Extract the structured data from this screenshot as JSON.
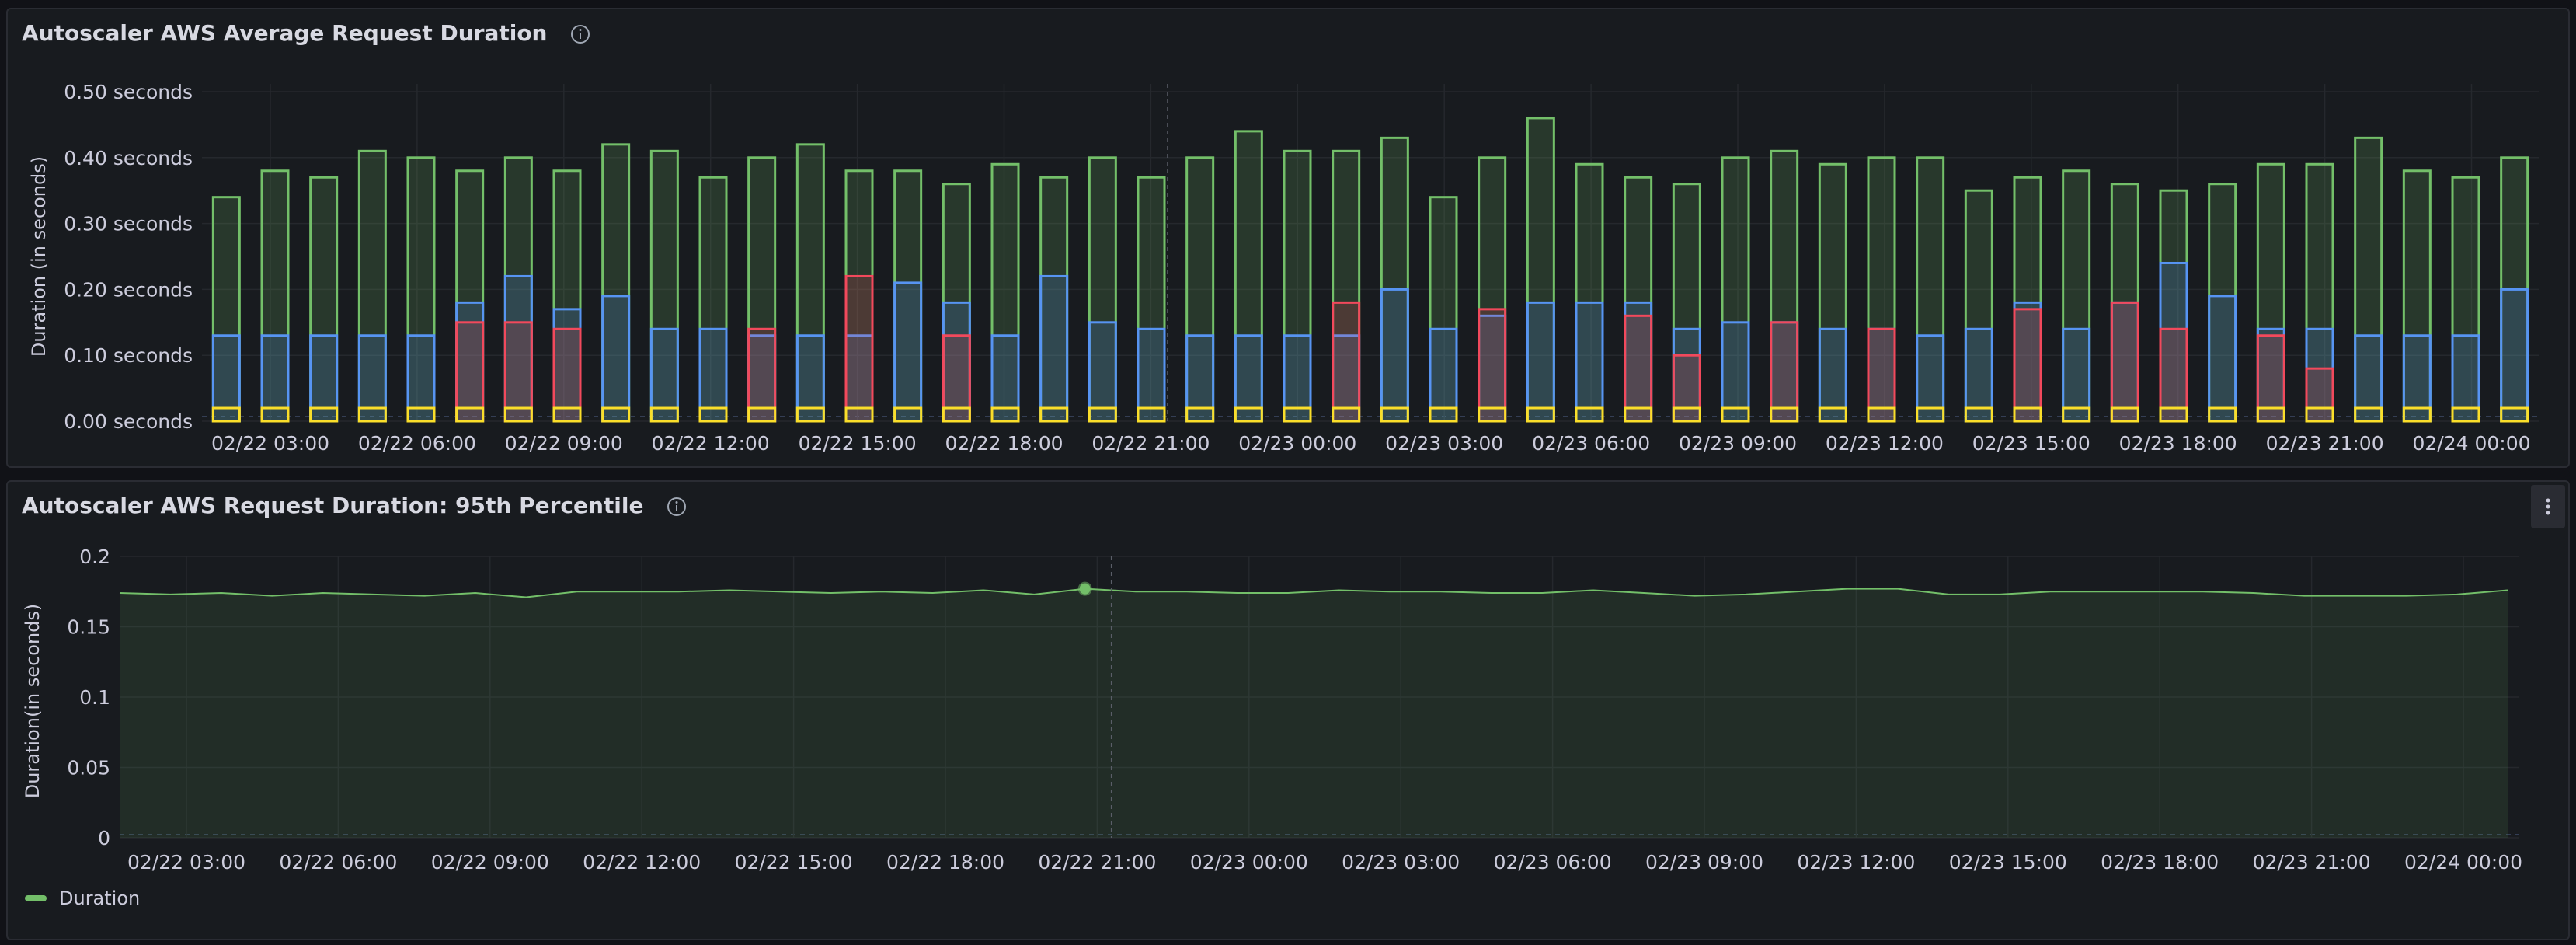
{
  "panels": [
    {
      "title": "Autoscaler AWS Average Request Duration"
    },
    {
      "title": "Autoscaler AWS Request Duration: 95th Percentile",
      "legend": [
        "Duration"
      ]
    }
  ],
  "colors": {
    "green": "#73bf69",
    "blue": "#5794f2",
    "red": "#f2495c",
    "yellow": "#fade2a",
    "grid": "#25282d",
    "text": "#ccccdc"
  },
  "icons": [
    "info-icon",
    "menu-kebab-icon"
  ],
  "chart_data": [
    {
      "type": "bar",
      "title": "Autoscaler AWS Average Request Duration",
      "ylabel": "Duration (in seconds)",
      "ylim": [
        0,
        0.5
      ],
      "yticks": [
        "0.00 seconds",
        "0.10 seconds",
        "0.20 seconds",
        "0.30 seconds",
        "0.40 seconds",
        "0.50 seconds"
      ],
      "xticks": [
        "02/22 03:00",
        "02/22 06:00",
        "02/22 09:00",
        "02/22 12:00",
        "02/22 15:00",
        "02/22 18:00",
        "02/22 21:00",
        "02/23 00:00",
        "02/23 03:00",
        "02/23 06:00",
        "02/23 09:00",
        "02/23 12:00",
        "02/23 15:00",
        "02/23 18:00",
        "02/23 21:00",
        "02/24 00:00"
      ],
      "grid": true,
      "series": [
        {
          "color": "green",
          "values": [
            0.34,
            0.38,
            0.37,
            0.41,
            0.4,
            0.38,
            0.4,
            0.38,
            0.42,
            0.41,
            0.37,
            0.4,
            0.42,
            0.38,
            0.38,
            0.36,
            0.39,
            0.37,
            0.4,
            0.37,
            0.4,
            0.44,
            0.41,
            0.41,
            0.43,
            0.34,
            0.4,
            0.46,
            0.39,
            0.37,
            0.36,
            0.4,
            0.41,
            0.39,
            0.4,
            0.4,
            0.35,
            0.37,
            0.38,
            0.36,
            0.35,
            0.36,
            0.39,
            0.39,
            0.43,
            0.38,
            0.37,
            0.4
          ]
        },
        {
          "color": "blue",
          "values": [
            0.13,
            0.13,
            0.13,
            0.13,
            0.13,
            0.18,
            0.22,
            0.17,
            0.19,
            0.14,
            0.14,
            0.13,
            0.13,
            0.13,
            0.21,
            0.18,
            0.13,
            0.22,
            0.15,
            0.14,
            0.13,
            0.13,
            0.13,
            0.13,
            0.2,
            0.14,
            0.16,
            0.18,
            0.18,
            0.18,
            0.14,
            0.15,
            0.15,
            0.14,
            0.14,
            0.13,
            0.14,
            0.18,
            0.14,
            0.18,
            0.24,
            0.19,
            0.14,
            0.14,
            0.13,
            0.13,
            0.13,
            0.2
          ]
        },
        {
          "color": "red",
          "values": [
            0,
            0,
            0,
            0,
            0,
            0.15,
            0.15,
            0.14,
            0,
            0,
            0,
            0.14,
            0,
            0.22,
            0,
            0.13,
            0,
            0,
            0,
            0,
            0,
            0,
            0,
            0.18,
            0,
            0,
            0.17,
            0,
            0,
            0.16,
            0.1,
            0,
            0.15,
            0,
            0.14,
            0,
            0,
            0.17,
            0,
            0.18,
            0.14,
            0,
            0.13,
            0.08,
            0,
            0,
            0,
            0
          ]
        },
        {
          "color": "yellow",
          "values": [
            0.02,
            0.02,
            0.02,
            0.02,
            0.02,
            0.02,
            0.02,
            0.02,
            0.02,
            0.02,
            0.02,
            0.02,
            0.02,
            0.02,
            0.02,
            0.02,
            0.02,
            0.02,
            0.02,
            0.02,
            0.02,
            0.02,
            0.02,
            0.02,
            0.02,
            0.02,
            0.02,
            0.02,
            0.02,
            0.02,
            0.02,
            0.02,
            0.02,
            0.02,
            0.02,
            0.02,
            0.02,
            0.02,
            0.02,
            0.02,
            0.02,
            0.02,
            0.02,
            0.02,
            0.02,
            0.02,
            0.02,
            0.02
          ]
        }
      ]
    },
    {
      "type": "area",
      "title": "Autoscaler AWS Request Duration: 95th Percentile",
      "ylabel": "Duration(in seconds)",
      "ylim": [
        0,
        0.2
      ],
      "yticks": [
        "0",
        "0.05",
        "0.1",
        "0.15",
        "0.2"
      ],
      "xticks": [
        "02/22 03:00",
        "02/22 06:00",
        "02/22 09:00",
        "02/22 12:00",
        "02/22 15:00",
        "02/22 18:00",
        "02/22 21:00",
        "02/23 00:00",
        "02/23 03:00",
        "02/23 06:00",
        "02/23 09:00",
        "02/23 12:00",
        "02/23 15:00",
        "02/23 18:00",
        "02/23 21:00",
        "02/24 00:00"
      ],
      "grid": true,
      "legend": "bottom-left",
      "series": [
        {
          "name": "Duration",
          "color": "green",
          "values": [
            0.174,
            0.173,
            0.174,
            0.172,
            0.174,
            0.173,
            0.172,
            0.174,
            0.171,
            0.175,
            0.175,
            0.175,
            0.176,
            0.175,
            0.174,
            0.175,
            0.174,
            0.176,
            0.173,
            0.177,
            0.175,
            0.175,
            0.174,
            0.174,
            0.176,
            0.175,
            0.175,
            0.174,
            0.174,
            0.176,
            0.174,
            0.172,
            0.173,
            0.175,
            0.177,
            0.177,
            0.173,
            0.173,
            0.175,
            0.175,
            0.175,
            0.175,
            0.174,
            0.172,
            0.172,
            0.172,
            0.173,
            0.176
          ]
        }
      ]
    }
  ]
}
